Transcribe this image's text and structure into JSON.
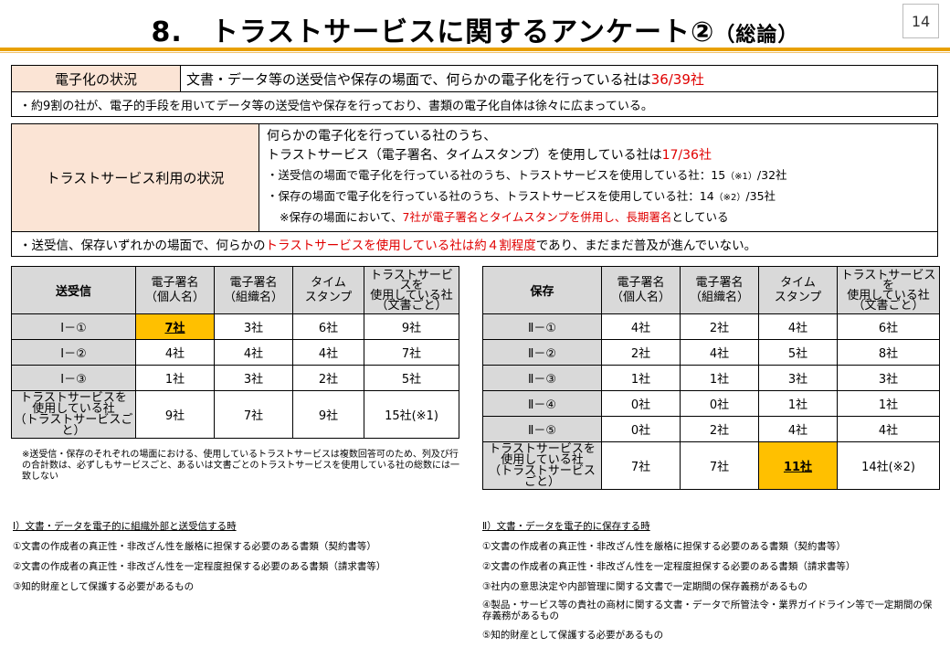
{
  "header": {
    "title_main": "8.　トラストサービスに関するアンケート②",
    "title_sub": "（総論）",
    "page_number": "14"
  },
  "block1": {
    "label": "電子化の状況",
    "text": "文書・データ等の送受信や保存の場面で、何らかの電子化を行っている社は",
    "value": "36/39社",
    "note": "・約9割の社が、電子的手段を用いてデータ等の送受信や保存を行っており、書類の電子化自体は徐々に広まっている。"
  },
  "block2": {
    "label": "トラストサービス利用の状況",
    "line1": "何らかの電子化を行っている社のうち、",
    "line2_text": "トラストサービス（電子署名、タイムスタンプ）を使用している社は",
    "line2_value": "17/36社",
    "line3_text": "・送受信の場面で電子化を行っている社のうち、トラストサービスを使用している社：15",
    "line3_mark": "（※1）",
    "line3_tail": "/32社",
    "line4_text": "・保存の場面で電子化を行っている社のうち、トラストサービスを使用している社：14",
    "line4_mark": "（※2）",
    "line4_tail": "/35社",
    "line5_pre": "※保存の場面において、",
    "line5_red": "7社が電子署名とタイムスタンプを併用し、長期署名",
    "line5_post": "としている",
    "note_pre": "・送受信、保存いずれかの場面で、何らかの",
    "note_red": "トラストサービスを使用している社は約４割程度",
    "note_post": "であり、まだまだ普及が進んでいない。"
  },
  "table_send": {
    "title": "送受信",
    "col1": "電子署名\n（個人名）",
    "col2": "電子署名\n（組織名）",
    "col3": "タイム\nスタンプ",
    "col4": "トラストサービスを\n使用している社\n（文書ごと）",
    "rows": [
      {
        "label": "Ⅰ－①",
        "c1": "7社",
        "c2": "3社",
        "c3": "6社",
        "c4": "9社"
      },
      {
        "label": "Ⅰ－②",
        "c1": "4社",
        "c2": "4社",
        "c3": "4社",
        "c4": "7社"
      },
      {
        "label": "Ⅰ－③",
        "c1": "1社",
        "c2": "3社",
        "c3": "2社",
        "c4": "5社"
      }
    ],
    "total": {
      "label": "トラストサービスを\n使用している社\n（トラストサービスごと）",
      "c1": "9社",
      "c2": "7社",
      "c3": "9社",
      "c4": "15社(※1)"
    }
  },
  "table_store": {
    "title": "保存",
    "col1": "電子署名\n（個人名）",
    "col2": "電子署名\n（組織名）",
    "col3": "タイム\nスタンプ",
    "col4": "トラストサービスを\n使用している社\n（文書ごと）",
    "rows": [
      {
        "label": "Ⅱ－①",
        "c1": "4社",
        "c2": "2社",
        "c3": "4社",
        "c4": "6社"
      },
      {
        "label": "Ⅱ－②",
        "c1": "2社",
        "c2": "4社",
        "c3": "5社",
        "c4": "8社"
      },
      {
        "label": "Ⅱ－③",
        "c1": "1社",
        "c2": "1社",
        "c3": "3社",
        "c4": "3社"
      },
      {
        "label": "Ⅱ－④",
        "c1": "0社",
        "c2": "0社",
        "c3": "1社",
        "c4": "1社"
      },
      {
        "label": "Ⅱ－⑤",
        "c1": "0社",
        "c2": "2社",
        "c3": "4社",
        "c4": "4社"
      }
    ],
    "total": {
      "label": "トラストサービスを\n使用している社\n（トラストサービスごと）",
      "c1": "7社",
      "c2": "7社",
      "c3": "11社",
      "c4": "14社(※2)"
    }
  },
  "table_note": "※送受信・保存のそれぞれの場面における、使用しているトラストサービスは複数回答可のため、列及び行の合計数は、必ずしもサービスごと、あるいは文書ごとのトラストサービスを使用している社の総数には一致しない",
  "list_send": {
    "head": "Ⅰ）文書・データを電子的に組織外部と送受信する時",
    "items": [
      "①文書の作成者の真正性・非改ざん性を厳格に担保する必要のある書類（契約書等）",
      "②文書の作成者の真正性・非改ざん性を一定程度担保する必要のある書類（請求書等）",
      "③知的財産として保護する必要があるもの"
    ]
  },
  "list_store": {
    "head": "Ⅱ）文書・データを電子的に保存する時",
    "items": [
      "①文書の作成者の真正性・非改ざん性を厳格に担保する必要のある書類（契約書等）",
      "②文書の作成者の真正性・非改ざん性を一定程度担保する必要のある書類（請求書等）",
      "③社内の意思決定や内部管理に関する文書で一定期間の保存義務があるもの",
      "④製品・サービス等の貴社の商材に関する文書・データで所管法令・業界ガイドライン等で一定期間の保存義務があるもの",
      "⑤知的財産として保護する必要があるもの"
    ]
  },
  "colors": {
    "accent_rule": "#e8a000",
    "label_fill": "#fbe4d5",
    "header_fill": "#d9d9d9",
    "highlight": "#ffc000",
    "emphasis_text": "#e00000"
  }
}
